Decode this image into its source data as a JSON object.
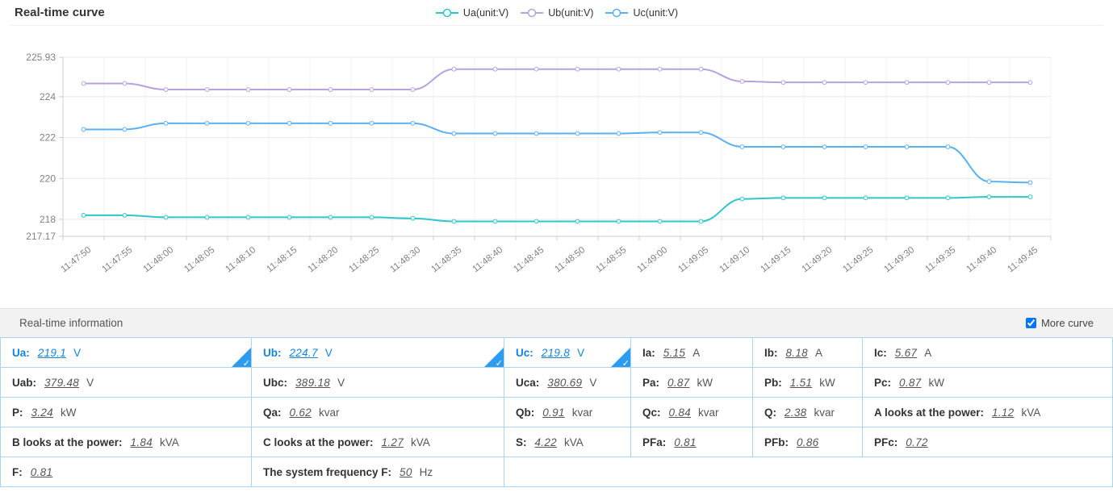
{
  "chart": {
    "title": "Real-time curve"
  },
  "chart_data": {
    "type": "line",
    "smooth": true,
    "legend_position": "top-center",
    "grid": true,
    "x": [
      "11:47:50",
      "11:47:55",
      "11:48:00",
      "11:48:05",
      "11:48:10",
      "11:48:15",
      "11:48:20",
      "11:48:25",
      "11:48:30",
      "11:48:35",
      "11:48:40",
      "11:48:45",
      "11:48:50",
      "11:48:55",
      "11:49:00",
      "11:49:05",
      "11:49:10",
      "11:49:15",
      "11:49:20",
      "11:49:25",
      "11:49:30",
      "11:49:35",
      "11:49:40",
      "11:49:45"
    ],
    "ylim": [
      217.17,
      225.93
    ],
    "yticks": [
      217.17,
      218,
      220,
      222,
      224,
      225.93
    ],
    "series": [
      {
        "name": "Ua(unit:V)",
        "color": "#2ec7c9",
        "values": [
          218.2,
          218.2,
          218.1,
          218.1,
          218.1,
          218.1,
          218.1,
          218.1,
          218.05,
          217.9,
          217.9,
          217.9,
          217.9,
          217.9,
          217.9,
          217.9,
          219.0,
          219.05,
          219.05,
          219.05,
          219.05,
          219.05,
          219.1,
          219.1
        ]
      },
      {
        "name": "Ub(unit:V)",
        "color": "#b6a2de",
        "values": [
          224.65,
          224.65,
          224.35,
          224.35,
          224.35,
          224.35,
          224.35,
          224.35,
          224.35,
          225.35,
          225.35,
          225.35,
          225.35,
          225.35,
          225.35,
          225.35,
          224.75,
          224.7,
          224.7,
          224.7,
          224.7,
          224.7,
          224.7,
          224.7
        ]
      },
      {
        "name": "Uc(unit:V)",
        "color": "#5ab1ef",
        "values": [
          222.4,
          222.4,
          222.7,
          222.7,
          222.7,
          222.7,
          222.7,
          222.7,
          222.7,
          222.2,
          222.2,
          222.2,
          222.2,
          222.2,
          222.25,
          222.25,
          221.55,
          221.55,
          221.55,
          221.55,
          221.55,
          221.55,
          219.85,
          219.8
        ]
      }
    ]
  },
  "info_panel": {
    "title": "Real-time information",
    "more_curve_label": "More curve",
    "more_curve_checked": true,
    "rows": [
      [
        {
          "label": "Ua",
          "value": "219.1",
          "unit": "V",
          "selected": true
        },
        {
          "label": "Ub",
          "value": "224.7",
          "unit": "V",
          "selected": true
        },
        {
          "label": "Uc",
          "value": "219.8",
          "unit": "V",
          "selected": true
        },
        {
          "label": "Ia",
          "value": "5.15",
          "unit": "A"
        },
        {
          "label": "Ib",
          "value": "8.18",
          "unit": "A"
        },
        {
          "label": "Ic",
          "value": "5.67",
          "unit": "A"
        }
      ],
      [
        {
          "label": "Uab",
          "value": "379.48",
          "unit": "V"
        },
        {
          "label": "Ubc",
          "value": "389.18",
          "unit": "V"
        },
        {
          "label": "Uca",
          "value": "380.69",
          "unit": "V"
        },
        {
          "label": "Pa",
          "value": "0.87",
          "unit": "kW"
        },
        {
          "label": "Pb",
          "value": "1.51",
          "unit": "kW"
        },
        {
          "label": "Pc",
          "value": "0.87",
          "unit": "kW"
        }
      ],
      [
        {
          "label": "P",
          "value": "3.24",
          "unit": "kW"
        },
        {
          "label": "Qa",
          "value": "0.62",
          "unit": "kvar"
        },
        {
          "label": "Qb",
          "value": "0.91",
          "unit": "kvar"
        },
        {
          "label": "Qc",
          "value": "0.84",
          "unit": "kvar"
        },
        {
          "label": "Q",
          "value": "2.38",
          "unit": "kvar"
        },
        {
          "label": "A looks at the power",
          "value": "1.12",
          "unit": "kVA"
        }
      ],
      [
        {
          "label": "B looks at the power",
          "value": "1.84",
          "unit": "kVA"
        },
        {
          "label": "C looks at the power",
          "value": "1.27",
          "unit": "kVA"
        },
        {
          "label": "S",
          "value": "4.22",
          "unit": "kVA"
        },
        {
          "label": "PFa",
          "value": "0.81",
          "unit": ""
        },
        {
          "label": "PFb",
          "value": "0.86",
          "unit": ""
        },
        {
          "label": "PFc",
          "value": "0.72",
          "unit": ""
        }
      ],
      [
        {
          "label": "F",
          "value": "0.81",
          "unit": ""
        },
        {
          "label": "The system frequency F",
          "value": "50",
          "unit": "Hz"
        },
        {
          "empty": true,
          "span": 4
        }
      ]
    ]
  }
}
